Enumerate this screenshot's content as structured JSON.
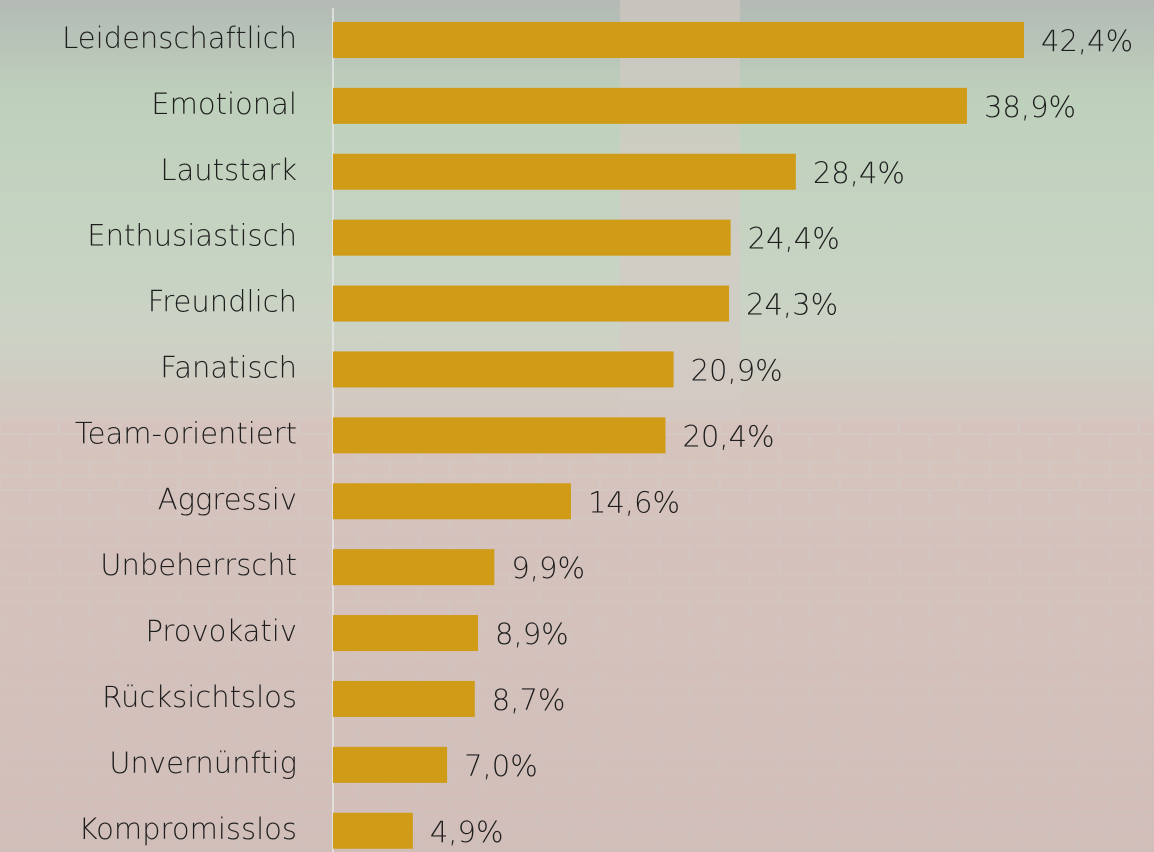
{
  "chart_data": {
    "type": "bar",
    "orientation": "horizontal",
    "categories": [
      "Leidenschaftlich",
      "Emotional",
      "Lautstark",
      "Enthusiastisch",
      "Freundlich",
      "Fanatisch",
      "Team-orientiert",
      "Aggressiv",
      "Unbeherrscht",
      "Provokativ",
      "Rücksichtslos",
      "Unvernünftig",
      "Kompromisslos"
    ],
    "values": [
      42.4,
      38.9,
      28.4,
      24.4,
      24.3,
      20.9,
      20.4,
      14.6,
      9.9,
      8.9,
      8.7,
      7.0,
      4.9
    ],
    "value_labels": [
      "42,4%",
      "38,9%",
      "28,4%",
      "24,4%",
      "24,3%",
      "20,9%",
      "20,4%",
      "14,6%",
      "9,9%",
      "8,9%",
      "8,7%",
      "7,0%",
      "4,9%"
    ],
    "color": "#d09b17"
  }
}
